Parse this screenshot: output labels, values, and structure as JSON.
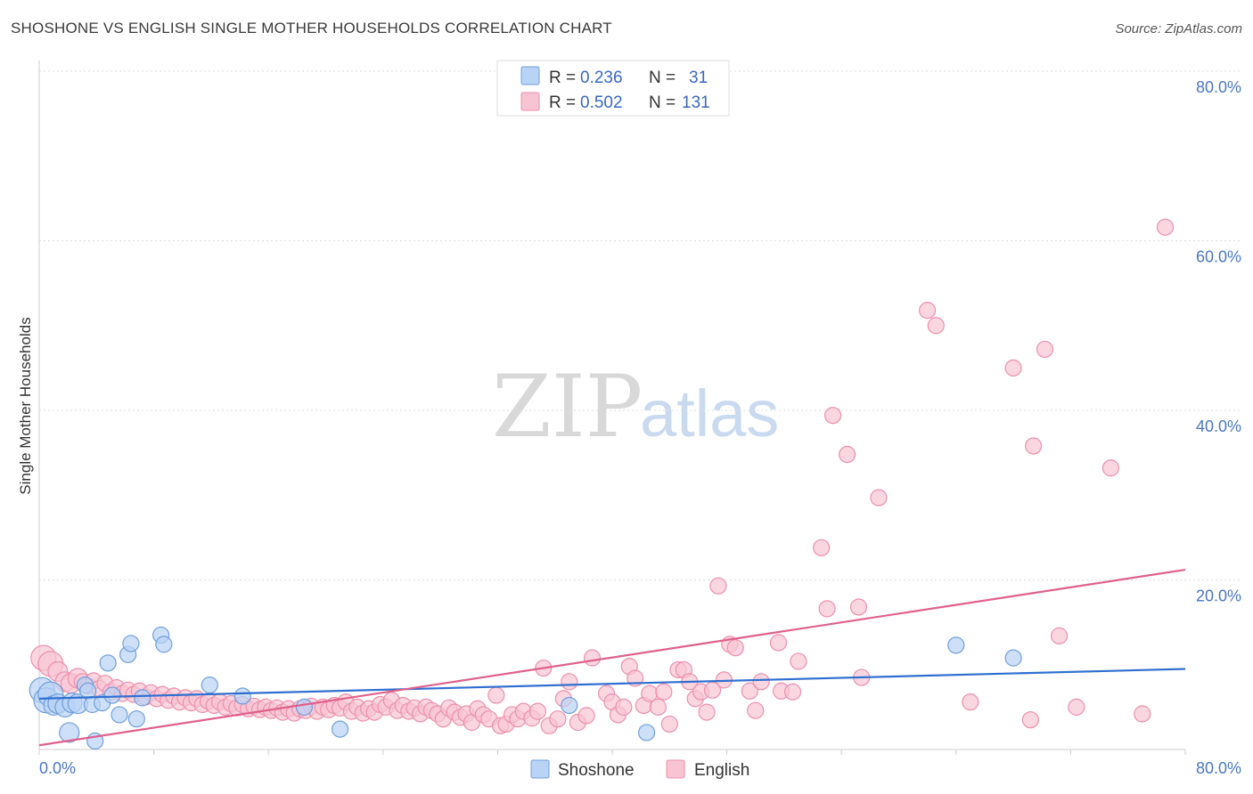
{
  "title": "SHOSHONE VS ENGLISH SINGLE MOTHER HOUSEHOLDS CORRELATION CHART",
  "source": "Source: ZipAtlas.com",
  "watermark": {
    "zip": "ZIP",
    "atlas": "atlas"
  },
  "colors": {
    "shoshone_fill": "#b9d3f5",
    "shoshone_stroke": "#6f9fdc",
    "shoshone_line": "#2f6fd0",
    "english_fill": "#f8c4d3",
    "english_stroke": "#ec8fae",
    "english_line": "#e0608c",
    "grid": "#dddddd",
    "tick_text": "#4a76c4"
  },
  "legend": {
    "rows": [
      {
        "r_label": "R =",
        "r_value": "0.236",
        "n_label": "N =",
        "n_value": "31"
      },
      {
        "r_label": "R =",
        "r_value": "0.502",
        "n_label": "N =",
        "n_value": "131"
      }
    ]
  },
  "chart_data": {
    "type": "scatter",
    "title": "SHOSHONE VS ENGLISH SINGLE MOTHER HOUSEHOLDS CORRELATION CHART",
    "xlabel": "",
    "ylabel": "Single Mother Households",
    "xlim": [
      0,
      80
    ],
    "ylim": [
      0,
      80
    ],
    "x_tick_labels": [
      "0.0%",
      "80.0%"
    ],
    "y_ticks": [
      20,
      40,
      60,
      80
    ],
    "y_tick_labels": [
      "20.0%",
      "40.0%",
      "60.0%",
      "80.0%"
    ],
    "grid": "horizontal dashed",
    "legend_placement": "top-center",
    "series": [
      {
        "name": "Shoshone",
        "r": 0.236,
        "n": 31,
        "trend": [
          [
            0,
            6.0
          ],
          [
            80,
            9.5
          ]
        ],
        "points": [
          [
            0.2,
            7.0
          ],
          [
            0.5,
            5.8
          ],
          [
            0.8,
            6.5
          ],
          [
            1.0,
            5.2
          ],
          [
            1.3,
            5.4
          ],
          [
            1.8,
            5.0
          ],
          [
            2.1,
            2.0
          ],
          [
            2.3,
            5.5
          ],
          [
            2.7,
            5.4
          ],
          [
            3.2,
            7.6
          ],
          [
            3.4,
            6.9
          ],
          [
            3.7,
            5.3
          ],
          [
            3.9,
            1.0
          ],
          [
            4.4,
            5.5
          ],
          [
            4.8,
            10.2
          ],
          [
            5.1,
            6.4
          ],
          [
            5.6,
            4.1
          ],
          [
            6.2,
            11.2
          ],
          [
            6.4,
            12.5
          ],
          [
            6.8,
            3.6
          ],
          [
            7.2,
            6.1
          ],
          [
            8.5,
            13.5
          ],
          [
            8.7,
            12.4
          ],
          [
            11.9,
            7.6
          ],
          [
            14.2,
            6.3
          ],
          [
            18.5,
            5.0
          ],
          [
            21.0,
            2.4
          ],
          [
            37.0,
            5.2
          ],
          [
            42.4,
            2.0
          ],
          [
            64.0,
            12.3
          ],
          [
            68.0,
            10.8
          ]
        ]
      },
      {
        "name": "English",
        "r": 0.502,
        "n": 131,
        "trend": [
          [
            0,
            0.5
          ],
          [
            80,
            21.2
          ]
        ],
        "points": [
          [
            0.3,
            10.8
          ],
          [
            0.8,
            10.1
          ],
          [
            1.3,
            9.2
          ],
          [
            1.8,
            8.0
          ],
          [
            2.2,
            7.8
          ],
          [
            2.7,
            8.4
          ],
          [
            3.0,
            8.0
          ],
          [
            3.4,
            7.5
          ],
          [
            3.8,
            8.1
          ],
          [
            4.2,
            7.2
          ],
          [
            4.6,
            7.8
          ],
          [
            5.0,
            6.8
          ],
          [
            5.4,
            7.3
          ],
          [
            5.8,
            6.6
          ],
          [
            6.2,
            7.0
          ],
          [
            6.6,
            6.5
          ],
          [
            7.0,
            6.9
          ],
          [
            7.4,
            6.2
          ],
          [
            7.8,
            6.7
          ],
          [
            8.2,
            6.0
          ],
          [
            8.6,
            6.5
          ],
          [
            9.0,
            5.8
          ],
          [
            9.4,
            6.3
          ],
          [
            9.8,
            5.6
          ],
          [
            10.2,
            6.1
          ],
          [
            10.6,
            5.5
          ],
          [
            11.0,
            6.0
          ],
          [
            11.4,
            5.3
          ],
          [
            11.8,
            5.7
          ],
          [
            12.2,
            5.2
          ],
          [
            12.6,
            5.6
          ],
          [
            13.0,
            5.0
          ],
          [
            13.4,
            5.4
          ],
          [
            13.8,
            4.9
          ],
          [
            14.2,
            5.3
          ],
          [
            14.6,
            4.8
          ],
          [
            15.0,
            5.1
          ],
          [
            15.4,
            4.7
          ],
          [
            15.8,
            5.0
          ],
          [
            16.2,
            4.6
          ],
          [
            16.6,
            4.9
          ],
          [
            17.0,
            4.4
          ],
          [
            17.4,
            4.8
          ],
          [
            17.8,
            4.3
          ],
          [
            18.2,
            4.8
          ],
          [
            18.6,
            4.6
          ],
          [
            19.0,
            5.1
          ],
          [
            19.4,
            4.5
          ],
          [
            19.8,
            5.0
          ],
          [
            20.2,
            4.7
          ],
          [
            20.6,
            5.2
          ],
          [
            21.0,
            4.9
          ],
          [
            21.4,
            5.6
          ],
          [
            21.8,
            4.5
          ],
          [
            22.2,
            5.0
          ],
          [
            22.6,
            4.3
          ],
          [
            23.0,
            4.8
          ],
          [
            23.4,
            4.4
          ],
          [
            23.8,
            5.3
          ],
          [
            24.2,
            5.0
          ],
          [
            24.6,
            5.8
          ],
          [
            25.0,
            4.6
          ],
          [
            25.4,
            5.2
          ],
          [
            25.8,
            4.5
          ],
          [
            26.2,
            4.9
          ],
          [
            26.6,
            4.2
          ],
          [
            27.0,
            5.0
          ],
          [
            27.4,
            4.6
          ],
          [
            27.8,
            4.2
          ],
          [
            28.2,
            3.6
          ],
          [
            28.6,
            4.9
          ],
          [
            29.0,
            4.4
          ],
          [
            29.4,
            3.8
          ],
          [
            29.8,
            4.2
          ],
          [
            30.2,
            3.2
          ],
          [
            30.6,
            4.8
          ],
          [
            31.0,
            4.1
          ],
          [
            31.4,
            3.6
          ],
          [
            31.9,
            6.4
          ],
          [
            32.2,
            2.8
          ],
          [
            32.6,
            3.0
          ],
          [
            33.0,
            4.1
          ],
          [
            33.4,
            3.6
          ],
          [
            33.8,
            4.5
          ],
          [
            34.4,
            3.7
          ],
          [
            34.8,
            4.5
          ],
          [
            35.2,
            9.6
          ],
          [
            35.6,
            2.8
          ],
          [
            36.2,
            3.6
          ],
          [
            36.6,
            6.0
          ],
          [
            37.0,
            8.0
          ],
          [
            37.6,
            3.2
          ],
          [
            38.2,
            4.0
          ],
          [
            38.6,
            10.8
          ],
          [
            39.6,
            6.6
          ],
          [
            40.0,
            5.6
          ],
          [
            40.4,
            4.1
          ],
          [
            40.8,
            5.0
          ],
          [
            41.2,
            9.8
          ],
          [
            41.6,
            8.4
          ],
          [
            42.2,
            5.2
          ],
          [
            42.6,
            6.6
          ],
          [
            43.2,
            5.0
          ],
          [
            43.6,
            6.8
          ],
          [
            44.0,
            3.0
          ],
          [
            44.6,
            9.4
          ],
          [
            45.0,
            9.4
          ],
          [
            45.4,
            8.0
          ],
          [
            45.8,
            6.0
          ],
          [
            46.2,
            6.8
          ],
          [
            46.6,
            4.4
          ],
          [
            47.0,
            7.0
          ],
          [
            47.4,
            19.3
          ],
          [
            47.8,
            8.2
          ],
          [
            48.2,
            12.4
          ],
          [
            48.6,
            12.0
          ],
          [
            49.6,
            6.9
          ],
          [
            50.0,
            4.6
          ],
          [
            50.4,
            8.0
          ],
          [
            51.6,
            12.6
          ],
          [
            51.8,
            6.9
          ],
          [
            52.6,
            6.8
          ],
          [
            53.0,
            10.4
          ],
          [
            54.6,
            23.8
          ],
          [
            55.0,
            16.6
          ],
          [
            55.4,
            39.4
          ],
          [
            56.4,
            34.8
          ],
          [
            57.2,
            16.8
          ],
          [
            57.4,
            8.5
          ],
          [
            58.6,
            29.7
          ],
          [
            62.0,
            51.8
          ],
          [
            62.6,
            50.0
          ],
          [
            65.0,
            5.6
          ],
          [
            68.0,
            45.0
          ],
          [
            69.2,
            3.5
          ],
          [
            69.4,
            35.8
          ],
          [
            70.2,
            47.2
          ],
          [
            71.2,
            13.4
          ],
          [
            72.4,
            5.0
          ],
          [
            74.8,
            33.2
          ],
          [
            77.0,
            4.2
          ],
          [
            78.6,
            61.6
          ]
        ]
      }
    ]
  },
  "bottom_legend": [
    {
      "label": "Shoshone"
    },
    {
      "label": "English"
    }
  ]
}
